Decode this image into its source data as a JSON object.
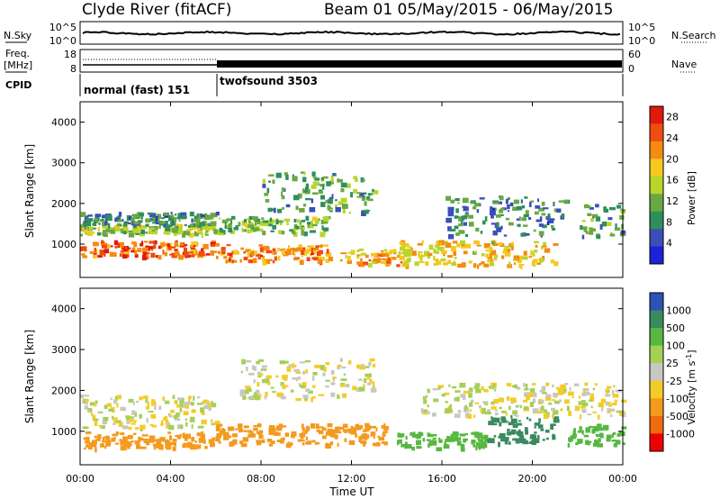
{
  "header": {
    "station": "Clyde River (fitACF)",
    "beam_date": "Beam 01 05/May/2015 - 06/May/2015"
  },
  "labels": {
    "n_sky": "N.Sky",
    "n_search": "N.Search",
    "freq_line1": "Freq.",
    "freq_line2": "[MHz]",
    "nave": "Nave",
    "cpid": "CPID",
    "mode1": "normal (fast) 151",
    "mode2": "twofsound 3503",
    "x_axis": "Time UT",
    "y_axis": "Slant Range [km]",
    "power_bar": "Power [dB]",
    "velocity_bar_prefix": "Velocity [m s",
    "velocity_bar_exp": "-1",
    "velocity_bar_suffix": "]"
  },
  "noise_axis": {
    "left_top": "10^5",
    "left_bottom": "10^0",
    "right_top": "10^5",
    "right_bottom": "10^0"
  },
  "freq_axis": {
    "left_top": "18",
    "left_bottom": "8",
    "right_top": "60",
    "right_bottom": "0"
  },
  "colors": {
    "power": [
      "#1e22d6",
      "#3b4fb8",
      "#2f8f5b",
      "#6aa843",
      "#b7d62b",
      "#f4c81e",
      "#f58b12",
      "#ef4c10",
      "#e01a0a"
    ],
    "velocity": [
      "#ee0000",
      "#f06a10",
      "#f49a1e",
      "#f4cc28",
      "#c8c8c2",
      "#a6cf56",
      "#56b840",
      "#3a8a60",
      "#2d52b6"
    ]
  },
  "chart_data": [
    {
      "type": "heatmap",
      "name": "Power",
      "x_ticks": [
        "00:00",
        "04:00",
        "08:00",
        "12:00",
        "16:00",
        "20:00",
        "00:00"
      ],
      "x_range_hours": [
        0,
        24
      ],
      "xlabel": "Time UT",
      "ylabel": "Slant Range [km]",
      "y_ticks": [
        1000,
        2000,
        3000,
        4000
      ],
      "y_range_km": [
        180,
        4500
      ],
      "colorbar_label": "Power [dB]",
      "colorbar_ticks": [
        4,
        8,
        12,
        16,
        20,
        24,
        28
      ],
      "colorbar_range": [
        0,
        30
      ],
      "bands": [
        {
          "t0": 0.0,
          "t1": 6.0,
          "r0": 1250,
          "r1": 1500,
          "v": 14
        },
        {
          "t0": 0.0,
          "t1": 6.0,
          "r0": 1500,
          "r1": 1800,
          "v": 8
        },
        {
          "t0": 0.0,
          "t1": 6.0,
          "r0": 700,
          "r1": 1100,
          "v": 24
        },
        {
          "t0": 6.0,
          "t1": 11.0,
          "r0": 600,
          "r1": 1000,
          "v": 22
        },
        {
          "t0": 6.0,
          "t1": 11.0,
          "r0": 1300,
          "r1": 1700,
          "v": 12
        },
        {
          "t0": 8.0,
          "t1": 13.0,
          "r0": 1800,
          "r1": 2800,
          "v": 10
        },
        {
          "t0": 11.5,
          "t1": 14.5,
          "r0": 500,
          "r1": 900,
          "v": 20
        },
        {
          "t0": 14.0,
          "t1": 21.0,
          "r0": 500,
          "r1": 1100,
          "v": 18
        },
        {
          "t0": 16.0,
          "t1": 21.5,
          "r0": 1200,
          "r1": 2200,
          "v": 8
        },
        {
          "t0": 22.0,
          "t1": 24.0,
          "r0": 1200,
          "r1": 2000,
          "v": 10
        }
      ]
    },
    {
      "type": "heatmap",
      "name": "Velocity",
      "x_ticks": [
        "00:00",
        "04:00",
        "08:00",
        "12:00",
        "16:00",
        "20:00",
        "00:00"
      ],
      "x_range_hours": [
        0,
        24
      ],
      "xlabel": "Time UT",
      "ylabel": "Slant Range [km]",
      "y_ticks": [
        1000,
        2000,
        3000,
        4000
      ],
      "y_range_km": [
        180,
        4500
      ],
      "colorbar_label": "Velocity [m s-1]",
      "colorbar_ticks": [
        "1000",
        "500",
        "100",
        "25",
        "-25",
        "-100",
        "-500",
        "-1000"
      ],
      "bands": [
        {
          "t0": 0.0,
          "t1": 6.0,
          "r0": 1100,
          "r1": 1900,
          "v": 0
        },
        {
          "t0": 0.0,
          "t1": 6.0,
          "r0": 600,
          "r1": 1000,
          "v": -300
        },
        {
          "t0": 6.0,
          "t1": 13.5,
          "r0": 700,
          "r1": 1200,
          "v": -300
        },
        {
          "t0": 7.0,
          "t1": 13.0,
          "r0": 1800,
          "r1": 2800,
          "v": 0
        },
        {
          "t0": 14.0,
          "t1": 18.0,
          "r0": 600,
          "r1": 1000,
          "v": 200
        },
        {
          "t0": 18.0,
          "t1": 21.0,
          "r0": 700,
          "r1": 1400,
          "v": 700
        },
        {
          "t0": 15.0,
          "t1": 24.0,
          "r0": 1400,
          "r1": 2200,
          "v": 0
        },
        {
          "t0": 21.5,
          "t1": 24.0,
          "r0": 700,
          "r1": 1200,
          "v": 200
        }
      ]
    }
  ]
}
